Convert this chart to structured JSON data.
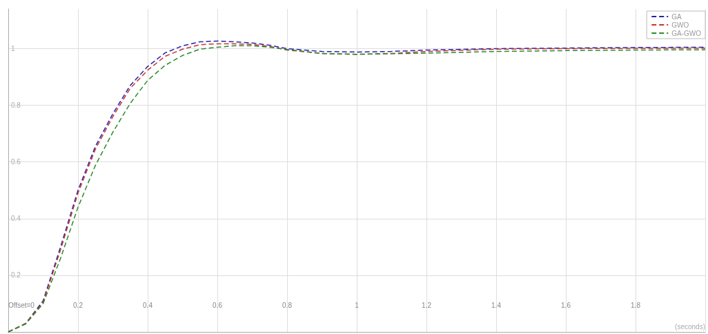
{
  "chart_data": {
    "type": "line",
    "xlabel": "(seconds)",
    "x": [
      0,
      0.05,
      0.1,
      0.15,
      0.2,
      0.25,
      0.3,
      0.35,
      0.4,
      0.45,
      0.5,
      0.55,
      0.6,
      0.65,
      0.7,
      0.75,
      0.8,
      0.9,
      1.0,
      1.1,
      1.2,
      1.4,
      1.6,
      1.8,
      2.0
    ],
    "series": [
      {
        "name": "GA",
        "color": "#2222aa",
        "values": [
          0,
          0.03,
          0.11,
          0.3,
          0.5,
          0.655,
          0.77,
          0.87,
          0.937,
          0.985,
          1.01,
          1.024,
          1.027,
          1.024,
          1.02,
          1.012,
          1.0,
          0.99,
          0.988,
          0.99,
          0.995,
          1.0,
          1.002,
          1.004,
          1.005
        ]
      },
      {
        "name": "GWO",
        "color": "#c83232",
        "values": [
          0,
          0.03,
          0.105,
          0.29,
          0.49,
          0.645,
          0.76,
          0.86,
          0.924,
          0.973,
          0.998,
          1.014,
          1.017,
          1.017,
          1.015,
          1.008,
          0.995,
          0.983,
          0.98,
          0.983,
          0.99,
          0.998,
          1.0,
          1.001,
          1.002
        ]
      },
      {
        "name": "GA-GWO",
        "color": "#2a8a2a",
        "values": [
          0,
          0.028,
          0.1,
          0.26,
          0.44,
          0.588,
          0.705,
          0.807,
          0.888,
          0.941,
          0.976,
          0.998,
          1.005,
          1.01,
          1.01,
          1.005,
          0.997,
          0.983,
          0.98,
          0.982,
          0.984,
          0.99,
          0.993,
          0.995,
          0.996
        ]
      }
    ],
    "xlim": [
      0,
      2
    ],
    "xticks": [
      {
        "value": 0,
        "label": "Offset=0"
      },
      0.2,
      0.4,
      0.6,
      0.8,
      1,
      1.2,
      1.4,
      1.6,
      1.8,
      {
        "value": 2,
        "label": null
      }
    ],
    "ylim": [
      0,
      1.14
    ],
    "yticks": [
      {
        "value": 0,
        "label": null
      },
      0.2,
      0.4,
      0.6,
      0.8,
      1
    ],
    "grid": true,
    "legend": "top right",
    "marker": "none",
    "line_style": "dashed"
  }
}
